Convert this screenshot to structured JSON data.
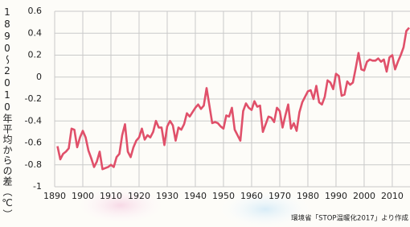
{
  "chart_data": {
    "type": "line",
    "y_label": "1890〜2010年平均からの差（℃）",
    "source": "環境省「STOP温暖化2017」より作成",
    "x": [
      1891,
      1892,
      1893,
      1894,
      1895,
      1896,
      1897,
      1898,
      1899,
      1900,
      1901,
      1902,
      1903,
      1904,
      1905,
      1906,
      1907,
      1908,
      1909,
      1910,
      1911,
      1912,
      1913,
      1914,
      1915,
      1916,
      1917,
      1918,
      1919,
      1920,
      1921,
      1922,
      1923,
      1924,
      1925,
      1926,
      1927,
      1928,
      1929,
      1930,
      1931,
      1932,
      1933,
      1934,
      1935,
      1936,
      1937,
      1938,
      1939,
      1940,
      1941,
      1942,
      1943,
      1944,
      1945,
      1946,
      1947,
      1948,
      1949,
      1950,
      1951,
      1952,
      1953,
      1954,
      1955,
      1956,
      1957,
      1958,
      1959,
      1960,
      1961,
      1962,
      1963,
      1964,
      1965,
      1966,
      1967,
      1968,
      1969,
      1970,
      1971,
      1972,
      1973,
      1974,
      1975,
      1976,
      1977,
      1978,
      1979,
      1980,
      1981,
      1982,
      1983,
      1984,
      1985,
      1986,
      1987,
      1988,
      1989,
      1990,
      1991,
      1992,
      1993,
      1994,
      1995,
      1996,
      1997,
      1998,
      1999,
      2000,
      2001,
      2002,
      2003,
      2004,
      2005,
      2006,
      2007,
      2008,
      2009,
      2010,
      2011,
      2012,
      2013,
      2014,
      2015,
      2016
    ],
    "values": [
      -0.63,
      -0.75,
      -0.7,
      -0.68,
      -0.65,
      -0.47,
      -0.48,
      -0.64,
      -0.55,
      -0.49,
      -0.55,
      -0.67,
      -0.74,
      -0.82,
      -0.77,
      -0.68,
      -0.84,
      -0.83,
      -0.82,
      -0.8,
      -0.82,
      -0.73,
      -0.7,
      -0.53,
      -0.43,
      -0.68,
      -0.73,
      -0.64,
      -0.58,
      -0.55,
      -0.47,
      -0.57,
      -0.53,
      -0.55,
      -0.5,
      -0.4,
      -0.46,
      -0.46,
      -0.62,
      -0.45,
      -0.4,
      -0.44,
      -0.58,
      -0.46,
      -0.48,
      -0.43,
      -0.33,
      -0.36,
      -0.32,
      -0.28,
      -0.25,
      -0.29,
      -0.26,
      -0.1,
      -0.26,
      -0.42,
      -0.41,
      -0.42,
      -0.45,
      -0.47,
      -0.35,
      -0.36,
      -0.28,
      -0.48,
      -0.53,
      -0.58,
      -0.31,
      -0.24,
      -0.28,
      -0.3,
      -0.22,
      -0.27,
      -0.26,
      -0.5,
      -0.43,
      -0.36,
      -0.37,
      -0.41,
      -0.28,
      -0.31,
      -0.46,
      -0.35,
      -0.25,
      -0.47,
      -0.42,
      -0.49,
      -0.32,
      -0.23,
      -0.18,
      -0.13,
      -0.12,
      -0.2,
      -0.08,
      -0.23,
      -0.25,
      -0.18,
      -0.03,
      -0.05,
      -0.11,
      0.03,
      0.01,
      -0.17,
      -0.16,
      -0.04,
      -0.07,
      -0.05,
      0.08,
      0.22,
      0.07,
      0.06,
      0.14,
      0.16,
      0.15,
      0.15,
      0.17,
      0.14,
      0.16,
      0.05,
      0.18,
      0.2,
      0.07,
      0.14,
      0.2,
      0.27,
      0.42,
      0.45
    ],
    "color": "#e0506a",
    "xlim": [
      1890,
      2016.3
    ],
    "xticks": [
      1890,
      1900,
      1910,
      1920,
      1930,
      1940,
      1950,
      1960,
      1970,
      1980,
      1990,
      2000,
      2010
    ],
    "ylim": [
      -1,
      0.6
    ],
    "yticks": [
      0.6,
      0.4,
      0.2,
      0,
      -0.2,
      -0.4,
      -0.6,
      -0.8,
      -1
    ],
    "grid": true
  }
}
